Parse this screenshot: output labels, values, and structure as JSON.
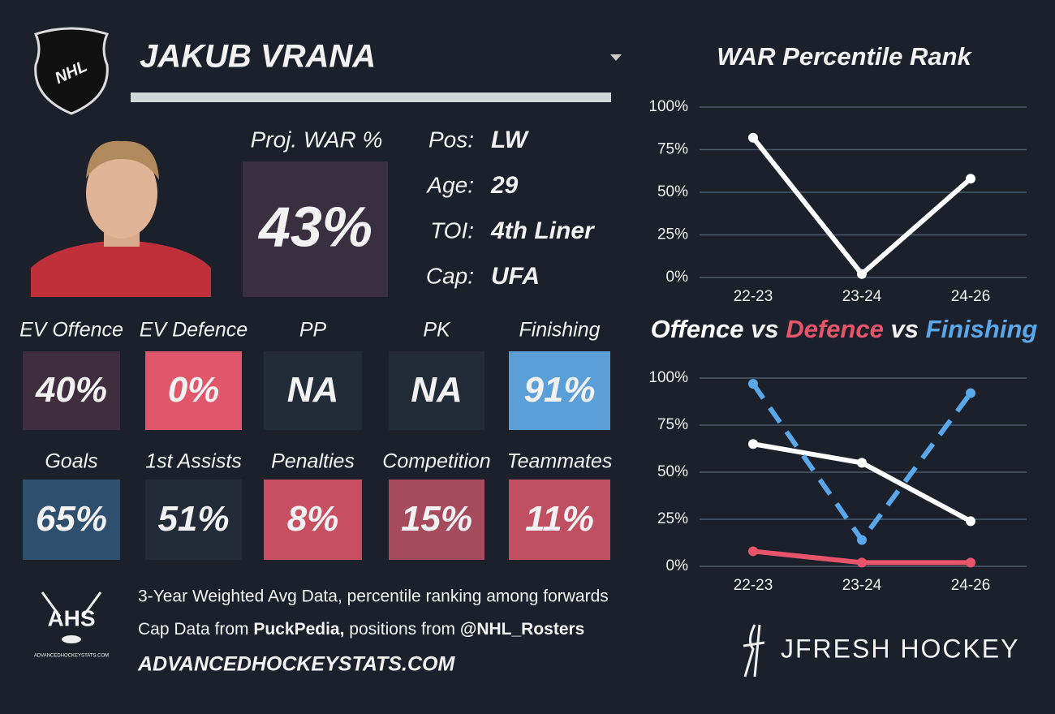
{
  "header": {
    "logo": "NHL",
    "player_name": "JAKUB VRANA"
  },
  "projection": {
    "label": "Proj. WAR %",
    "value": "43%"
  },
  "info": [
    {
      "label": "Pos:",
      "value": "LW"
    },
    {
      "label": "Age:",
      "value": "29"
    },
    {
      "label": "TOI:",
      "value": "4th Liner"
    },
    {
      "label": "Cap:",
      "value": "UFA"
    }
  ],
  "tiles": [
    {
      "label": "EV Offence",
      "value": "40%",
      "color": "#3f2f3e"
    },
    {
      "label": "EV Defence",
      "value": "0%",
      "color": "#e0566a"
    },
    {
      "label": "PP",
      "value": "NA",
      "color": "#222b38"
    },
    {
      "label": "PK",
      "value": "NA",
      "color": "#222b38"
    },
    {
      "label": "Finishing",
      "value": "91%",
      "color": "#5a9fd8"
    },
    {
      "label": "Goals",
      "value": "65%",
      "color": "#2f4f6f"
    },
    {
      "label": "1st Assists",
      "value": "51%",
      "color": "#232b39"
    },
    {
      "label": "Penalties",
      "value": "8%",
      "color": "#c84e62"
    },
    {
      "label": "Competition",
      "value": "15%",
      "color": "#a64a5e"
    },
    {
      "label": "Teammates",
      "value": "11%",
      "color": "#c04f62"
    }
  ],
  "footer": {
    "logo": "AHS",
    "logo_caption": "ADVANCEDHOCKEYSTATS.COM",
    "line1": "3-Year Weighted Avg Data, percentile ranking among forwards",
    "line2": [
      "Cap Data from ",
      "PuckPedia,",
      " positions from ",
      "@NHL_Rosters"
    ],
    "site": "ADVANCEDHOCKEYSTATS.COM",
    "brand": "JFRESH HOCKEY"
  },
  "chart_data": [
    {
      "type": "line",
      "title": "WAR Percentile Rank",
      "categories": [
        "22-23",
        "23-24",
        "24-26"
      ],
      "series": [
        {
          "name": "WAR",
          "color": "#ffffff",
          "values": [
            82,
            2,
            58
          ]
        }
      ],
      "ylim": [
        0,
        100
      ],
      "yticks": [
        {
          "value": 0,
          "label": "0%"
        },
        {
          "value": 25,
          "label": "25%"
        },
        {
          "value": 50,
          "label": "50%"
        },
        {
          "value": 75,
          "label": "75%"
        },
        {
          "value": 100,
          "label": "100%"
        }
      ],
      "grid": true
    },
    {
      "type": "line",
      "title_joiner": "vs",
      "categories": [
        "22-23",
        "23-24",
        "24-26"
      ],
      "series": [
        {
          "name": "Offence",
          "color": "#ffffff",
          "values": [
            65,
            55,
            24
          ]
        },
        {
          "name": "Defence",
          "color": "#e8556a",
          "values": [
            8,
            2,
            2
          ]
        },
        {
          "name": "Finishing",
          "color": "#5aa8ea",
          "dashed": true,
          "values": [
            97,
            14,
            92
          ]
        }
      ],
      "ylim": [
        0,
        100
      ],
      "yticks": [
        {
          "value": 0,
          "label": "0%"
        },
        {
          "value": 25,
          "label": "25%"
        },
        {
          "value": 50,
          "label": "50%"
        },
        {
          "value": 75,
          "label": "75%"
        },
        {
          "value": 100,
          "label": "100%"
        }
      ],
      "grid": true
    }
  ]
}
